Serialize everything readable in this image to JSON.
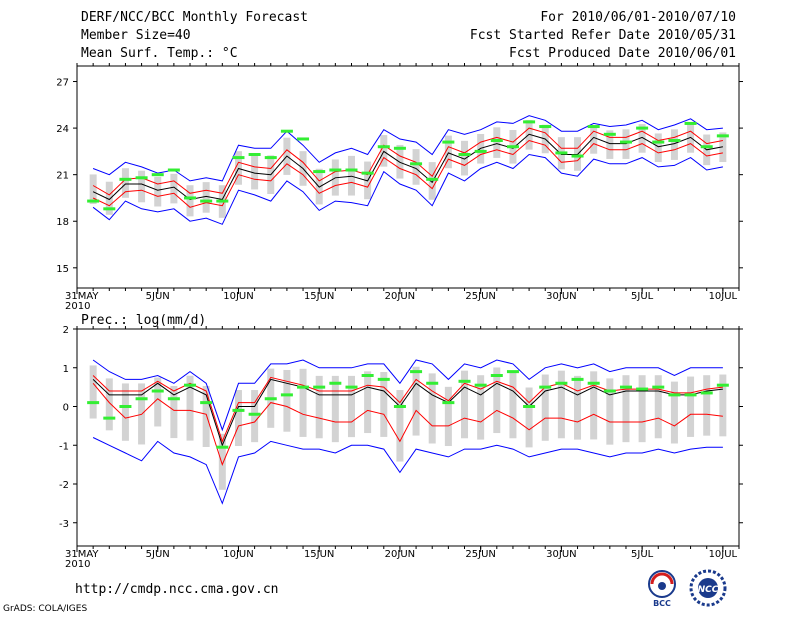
{
  "header": {
    "title": "DERF/NCC/BCC Monthly Forecast",
    "member_size": "Member Size=40",
    "variable1": "Mean Surf. Temp.: °C",
    "forecast_period": "For 2010/06/01-2010/07/10",
    "started_date": "Fcst Started Refer Date 2010/05/31",
    "produced_date": "Fcst Produced Date 2010/06/01"
  },
  "footer": {
    "url": "http://cmdp.ncc.cma.gov.cn",
    "grads_credit": "GrADS: COLA/IGES",
    "logo_bcc_text": "BCC",
    "logo_ncc_text": "NCC"
  },
  "colors": {
    "ensemble_mean": "#000000",
    "spread_band": "#ff0000",
    "extreme_band": "#0000ff",
    "members_box": "#d3d3d3",
    "median_bar": "#33ee33"
  },
  "chart_data": [
    {
      "type": "line",
      "title": "Mean Surf. Temp.: °C",
      "x_tick_labels": [
        "31MAY\n2010",
        "5JUN",
        "10JUN",
        "15JUN",
        "20JUN",
        "25JUN",
        "30JUN",
        "5JUL",
        "10JUL"
      ],
      "x_tick_days": [
        0,
        5,
        10,
        15,
        20,
        25,
        30,
        35,
        40
      ],
      "ylim": [
        13.7,
        28.0
      ],
      "yticks": [
        15,
        18,
        21,
        24,
        27
      ],
      "days": [
        1,
        2,
        3,
        4,
        5,
        6,
        7,
        8,
        9,
        10,
        11,
        12,
        13,
        14,
        15,
        16,
        17,
        18,
        19,
        20,
        21,
        22,
        23,
        24,
        25,
        26,
        27,
        28,
        29,
        30,
        31,
        32,
        33,
        34,
        35,
        36,
        37,
        38,
        39,
        40
      ],
      "series": [
        {
          "name": "mean",
          "values": [
            19.9,
            19.4,
            20.4,
            20.4,
            20.0,
            20.2,
            19.4,
            19.6,
            19.4,
            21.4,
            21.1,
            21.0,
            22.2,
            21.4,
            20.2,
            20.8,
            20.9,
            20.6,
            22.5,
            21.8,
            21.4,
            20.5,
            22.4,
            22.0,
            22.7,
            23.0,
            22.7,
            23.6,
            23.3,
            22.3,
            22.3,
            23.4,
            23.0,
            23.0,
            23.4,
            22.8,
            23.0,
            23.4,
            22.6,
            22.8
          ]
        },
        {
          "name": "mean+spread",
          "values": [
            20.3,
            19.7,
            20.7,
            20.8,
            20.4,
            20.6,
            19.8,
            20.0,
            19.8,
            21.8,
            21.5,
            21.4,
            22.6,
            21.8,
            20.6,
            21.2,
            21.3,
            21.0,
            22.9,
            22.2,
            21.8,
            20.9,
            22.8,
            22.4,
            23.1,
            23.4,
            23.1,
            24.0,
            23.7,
            22.7,
            22.7,
            23.8,
            23.4,
            23.4,
            23.8,
            23.2,
            23.4,
            23.8,
            23.0,
            23.2
          ]
        },
        {
          "name": "mean-spread",
          "values": [
            19.5,
            19.0,
            19.9,
            20.0,
            19.6,
            19.8,
            18.9,
            19.2,
            19.0,
            21.0,
            20.7,
            20.6,
            21.7,
            21.0,
            19.8,
            20.3,
            20.5,
            20.2,
            22.1,
            21.4,
            21.0,
            20.1,
            22.0,
            21.6,
            22.3,
            22.6,
            22.3,
            23.2,
            22.9,
            21.8,
            21.9,
            23.0,
            22.6,
            22.6,
            23.0,
            22.4,
            22.6,
            23.0,
            22.2,
            22.4
          ]
        },
        {
          "name": "max",
          "values": [
            21.4,
            21.0,
            21.8,
            21.5,
            21.1,
            21.3,
            20.6,
            20.8,
            20.6,
            22.9,
            22.7,
            22.7,
            23.8,
            22.9,
            21.8,
            22.4,
            22.7,
            22.3,
            23.9,
            23.3,
            23.1,
            22.3,
            23.9,
            23.6,
            23.9,
            24.4,
            24.3,
            24.8,
            24.5,
            23.8,
            23.8,
            24.3,
            24.1,
            24.2,
            24.5,
            23.9,
            24.2,
            24.6,
            23.9,
            24.0
          ]
        },
        {
          "name": "min",
          "values": [
            18.9,
            18.1,
            19.3,
            18.8,
            18.6,
            18.8,
            18.0,
            18.2,
            17.8,
            20.0,
            19.7,
            19.3,
            20.6,
            19.9,
            18.7,
            19.3,
            19.2,
            19.0,
            21.2,
            20.4,
            20.0,
            19.0,
            21.1,
            20.6,
            21.4,
            21.8,
            21.4,
            22.3,
            22.1,
            21.1,
            20.9,
            22.0,
            21.7,
            21.7,
            22.1,
            21.5,
            21.6,
            22.1,
            21.3,
            21.5
          ]
        },
        {
          "name": "median",
          "values": [
            19.3,
            18.8,
            20.7,
            20.8,
            21.0,
            21.3,
            19.5,
            19.3,
            19.3,
            22.1,
            22.3,
            22.1,
            23.8,
            23.3,
            21.2,
            21.3,
            21.3,
            21.1,
            22.8,
            22.7,
            21.7,
            20.7,
            23.1,
            22.3,
            22.5,
            23.2,
            22.8,
            24.4,
            24.1,
            22.4,
            22.2,
            24.1,
            23.6,
            23.1,
            24.0,
            23.1,
            23.2,
            24.3,
            22.8,
            23.5
          ]
        }
      ]
    },
    {
      "type": "line",
      "title": "Prec.: log(mm/d)",
      "x_tick_labels": [
        "31MAY\n2010",
        "5JUN",
        "10JUN",
        "15JUN",
        "20JUN",
        "25JUN",
        "30JUN",
        "5JUL",
        "10JUL"
      ],
      "x_tick_days": [
        0,
        5,
        10,
        15,
        20,
        25,
        30,
        35,
        40
      ],
      "ylim": [
        -3.6,
        2.0
      ],
      "yticks": [
        -3,
        -2,
        -1,
        0,
        1,
        2
      ],
      "days": [
        1,
        2,
        3,
        4,
        5,
        6,
        7,
        8,
        9,
        10,
        11,
        12,
        13,
        14,
        15,
        16,
        17,
        18,
        19,
        20,
        21,
        22,
        23,
        24,
        25,
        26,
        27,
        28,
        29,
        30,
        31,
        32,
        33,
        34,
        35,
        36,
        37,
        38,
        39,
        40
      ],
      "series": [
        {
          "name": "mean",
          "values": [
            0.7,
            0.3,
            0.3,
            0.3,
            0.6,
            0.3,
            0.5,
            0.3,
            -1.0,
            0.0,
            0.0,
            0.7,
            0.6,
            0.5,
            0.3,
            0.3,
            0.3,
            0.5,
            0.4,
            0.0,
            0.6,
            0.3,
            0.1,
            0.5,
            0.3,
            0.6,
            0.4,
            0.0,
            0.4,
            0.5,
            0.3,
            0.5,
            0.3,
            0.4,
            0.4,
            0.4,
            0.3,
            0.3,
            0.4,
            0.45
          ]
        },
        {
          "name": "mean+spread",
          "values": [
            0.8,
            0.4,
            0.4,
            0.4,
            0.65,
            0.4,
            0.6,
            0.4,
            -0.9,
            0.1,
            0.1,
            0.75,
            0.65,
            0.55,
            0.4,
            0.4,
            0.4,
            0.55,
            0.5,
            0.1,
            0.7,
            0.4,
            0.15,
            0.6,
            0.45,
            0.65,
            0.5,
            0.1,
            0.5,
            0.6,
            0.4,
            0.55,
            0.4,
            0.45,
            0.45,
            0.45,
            0.35,
            0.35,
            0.45,
            0.5
          ]
        },
        {
          "name": "mean-spread",
          "values": [
            0.6,
            0.1,
            -0.3,
            -0.2,
            0.2,
            -0.1,
            -0.1,
            -0.2,
            -1.5,
            -0.5,
            -0.4,
            0.1,
            0.0,
            -0.2,
            -0.3,
            -0.4,
            -0.4,
            -0.1,
            -0.2,
            -0.9,
            -0.1,
            -0.5,
            -0.5,
            -0.3,
            -0.4,
            -0.1,
            -0.3,
            -0.6,
            -0.3,
            -0.3,
            -0.4,
            -0.2,
            -0.4,
            -0.4,
            -0.4,
            -0.3,
            -0.5,
            -0.2,
            -0.2,
            -0.25
          ]
        },
        {
          "name": "max",
          "values": [
            1.2,
            0.9,
            0.7,
            0.7,
            0.8,
            0.6,
            0.9,
            0.6,
            -0.6,
            0.6,
            0.6,
            1.1,
            1.1,
            1.2,
            1.0,
            1.0,
            1.0,
            1.1,
            1.1,
            0.6,
            1.2,
            1.1,
            0.7,
            1.1,
            1.0,
            1.2,
            1.1,
            0.7,
            1.0,
            1.1,
            1.0,
            1.1,
            0.9,
            1.0,
            1.0,
            1.0,
            0.8,
            1.0,
            1.0,
            1.0
          ]
        },
        {
          "name": "min",
          "values": [
            -0.8,
            -1.0,
            -1.2,
            -1.4,
            -0.9,
            -1.2,
            -1.3,
            -1.5,
            -2.5,
            -1.3,
            -1.2,
            -0.9,
            -1.0,
            -1.1,
            -1.1,
            -1.2,
            -1.0,
            -1.0,
            -1.1,
            -1.7,
            -1.1,
            -1.2,
            -1.3,
            -1.1,
            -1.1,
            -1.0,
            -1.1,
            -1.3,
            -1.2,
            -1.1,
            -1.1,
            -1.2,
            -1.3,
            -1.2,
            -1.2,
            -1.1,
            -1.2,
            -1.1,
            -1.05,
            -1.05
          ]
        },
        {
          "name": "median",
          "values": [
            0.1,
            -0.3,
            0.0,
            0.2,
            0.4,
            0.2,
            0.55,
            0.1,
            -1.05,
            -0.1,
            -0.2,
            0.2,
            0.3,
            0.5,
            0.5,
            0.6,
            0.5,
            0.8,
            0.7,
            0.0,
            0.9,
            0.6,
            0.1,
            0.65,
            0.55,
            0.8,
            0.9,
            0.0,
            0.5,
            0.6,
            0.7,
            0.6,
            0.4,
            0.5,
            0.45,
            0.5,
            0.3,
            0.3,
            0.35,
            0.55
          ]
        }
      ]
    }
  ]
}
